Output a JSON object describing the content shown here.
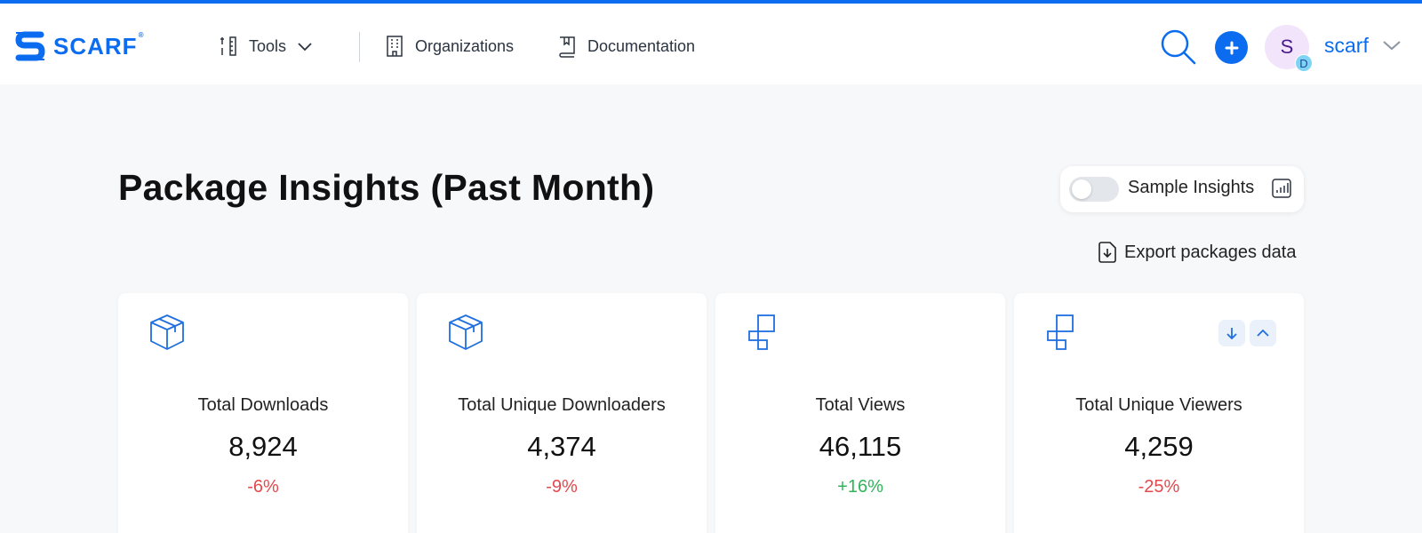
{
  "brand": {
    "name": "SCARF",
    "mark": "®",
    "color": "#0b6cf0"
  },
  "nav": {
    "tools": {
      "label": "Tools",
      "icon": "tools-icon"
    },
    "organizations": {
      "label": "Organizations",
      "icon": "building-icon"
    },
    "documentation": {
      "label": "Documentation",
      "icon": "book-icon"
    }
  },
  "user": {
    "initial": "S",
    "badge": "D",
    "name": "scarf"
  },
  "page": {
    "title": "Package Insights (Past Month)"
  },
  "sample_toggle": {
    "label": "Sample Insights",
    "enabled": false
  },
  "export": {
    "label": "Export packages data"
  },
  "stats": [
    {
      "label": "Total Downloads",
      "value": "8,924",
      "change": "-6%",
      "icon": "package-box-icon",
      "trend": "negative"
    },
    {
      "label": "Total Unique Downloaders",
      "value": "4,374",
      "change": "-9%",
      "icon": "package-box-icon",
      "trend": "negative"
    },
    {
      "label": "Total Views",
      "value": "46,115",
      "change": "+16%",
      "icon": "views-squares-icon",
      "trend": "positive"
    },
    {
      "label": "Total Unique Viewers",
      "value": "4,259",
      "change": "-25%",
      "icon": "views-squares-icon",
      "trend": "negative"
    }
  ],
  "colors": {
    "accent": "#0b6cf0",
    "negative": "#e5484d",
    "positive": "#2fb55a"
  }
}
